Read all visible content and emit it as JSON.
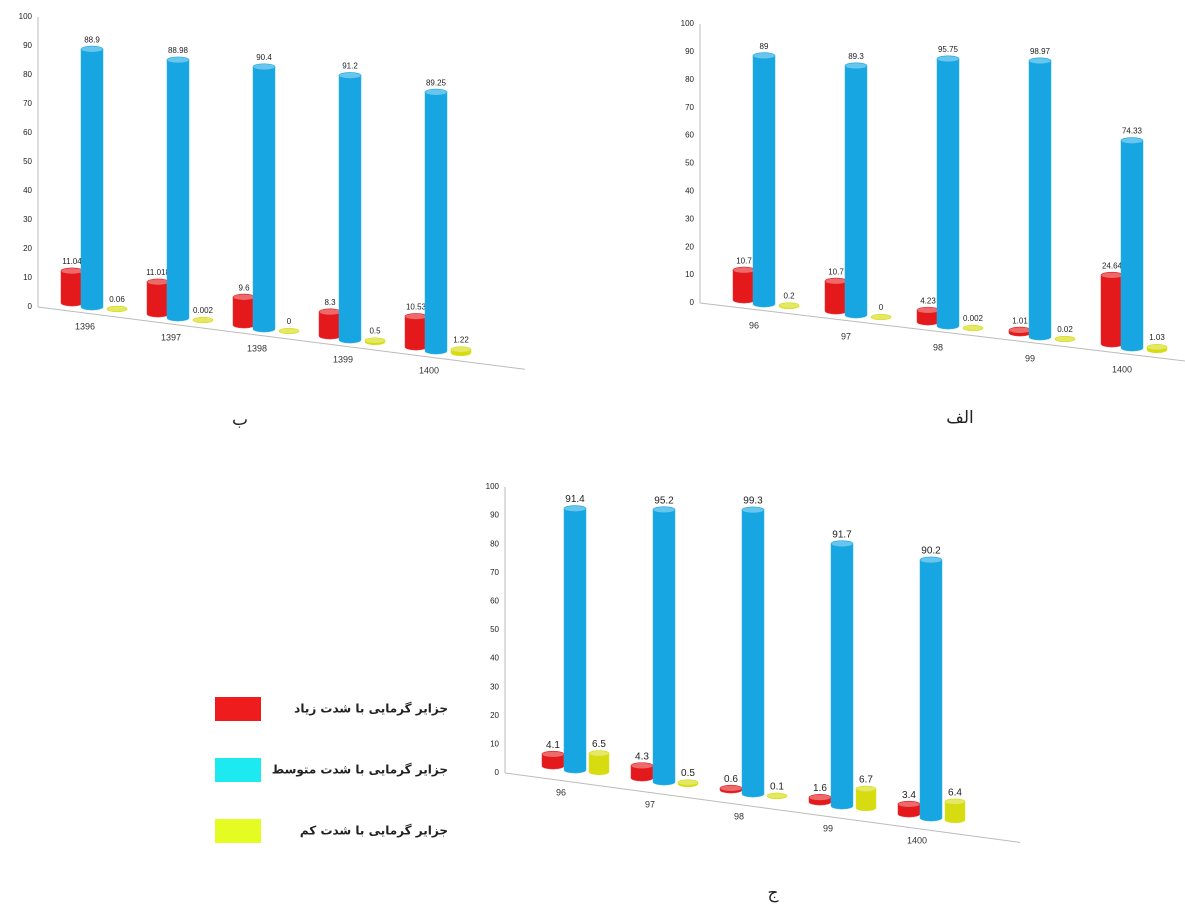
{
  "chart_data": [
    {
      "type": "bar",
      "label": "ب",
      "categories": [
        "1396",
        "1397",
        "1398",
        "1399",
        "1400"
      ],
      "series": [
        {
          "color": "#e3191c",
          "values": [
            11.04,
            11.018,
            9.6,
            8.3,
            10.53
          ]
        },
        {
          "color": "#17a6e2",
          "values": [
            88.9,
            88.98,
            90.4,
            91.2,
            89.25
          ]
        },
        {
          "color": "#d6dc10",
          "values": [
            0.06,
            0.002,
            0,
            0.5,
            1.22
          ]
        }
      ],
      "ylim": [
        0,
        100
      ],
      "yticks": [
        0,
        10,
        20,
        30,
        40,
        50,
        60,
        70,
        80,
        90,
        100
      ]
    },
    {
      "type": "bar",
      "label": "الف",
      "categories": [
        "96",
        "97",
        "98",
        "99",
        "1400"
      ],
      "series": [
        {
          "color": "#e3191c",
          "values": [
            10.7,
            10.7,
            4.23,
            1.01,
            24.64
          ]
        },
        {
          "color": "#17a6e2",
          "values": [
            89,
            89.3,
            95.75,
            98.97,
            74.33
          ]
        },
        {
          "color": "#d6dc10",
          "values": [
            0.2,
            0,
            0.002,
            0.02,
            1.03
          ]
        }
      ],
      "ylim": [
        0,
        100
      ],
      "yticks": [
        0,
        10,
        20,
        30,
        40,
        50,
        60,
        70,
        80,
        90,
        100
      ]
    },
    {
      "type": "bar",
      "label": "ج",
      "categories": [
        "96",
        "97",
        "98",
        "99",
        "1400"
      ],
      "series": [
        {
          "color": "#e3191c",
          "values": [
            4.1,
            4.3,
            0.6,
            1.6,
            3.4
          ]
        },
        {
          "color": "#17a6e2",
          "values": [
            91.4,
            95.2,
            99.3,
            91.7,
            90.2
          ]
        },
        {
          "color": "#d6dc10",
          "values": [
            6.5,
            0.5,
            0.1,
            6.7,
            6.4
          ]
        }
      ],
      "ylim": [
        0,
        100
      ],
      "yticks": [
        0,
        10,
        20,
        30,
        40,
        50,
        60,
        70,
        80,
        90,
        100
      ]
    }
  ],
  "legend": {
    "items": [
      {
        "name": "جزایر گرمایی با شدت زیاد",
        "color": "#ee1c1c"
      },
      {
        "name": "جزایر گرمایی با شدت متوسط",
        "color": "#1deaf0"
      },
      {
        "name": "جزایر گرمایی با شدت کم",
        "color": "#e4fc22"
      }
    ]
  }
}
